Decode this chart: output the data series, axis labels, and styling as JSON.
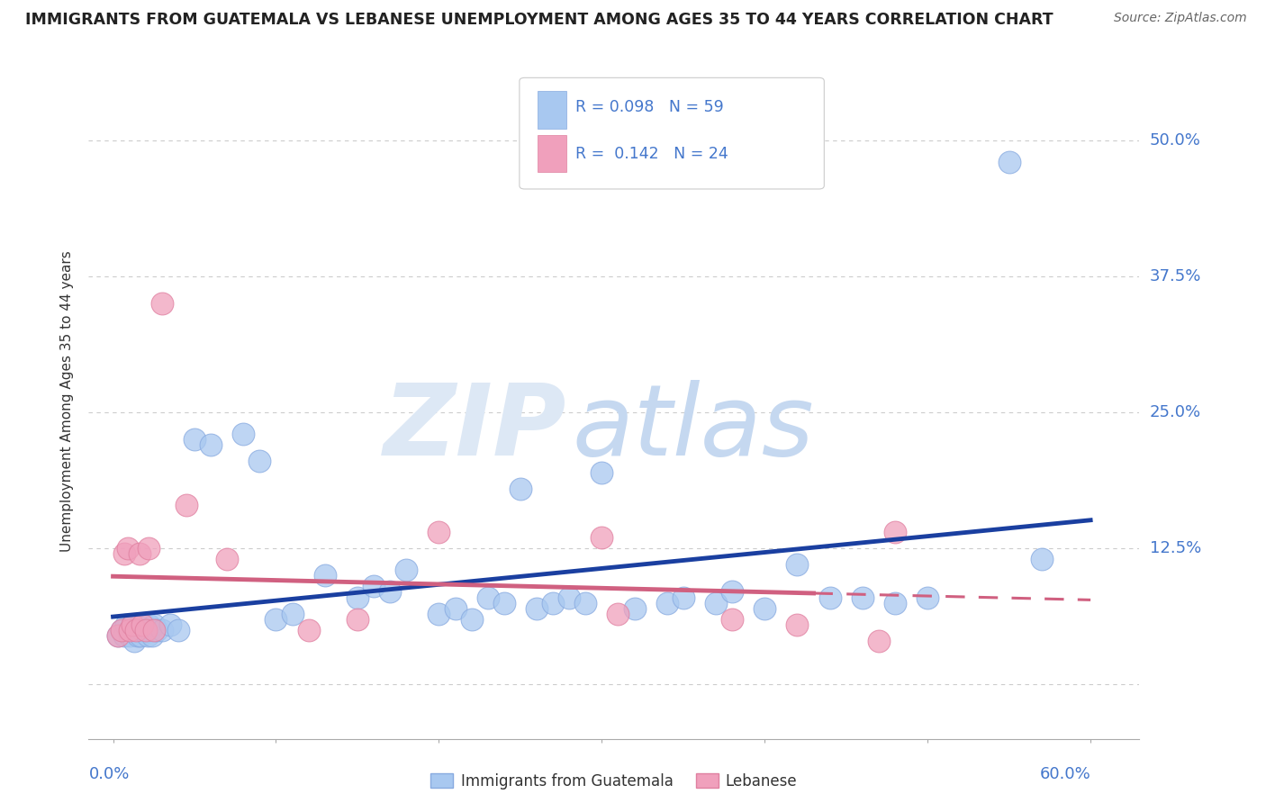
{
  "title": "IMMIGRANTS FROM GUATEMALA VS LEBANESE UNEMPLOYMENT AMONG AGES 35 TO 44 YEARS CORRELATION CHART",
  "source": "Source: ZipAtlas.com",
  "ylabel": "Unemployment Among Ages 35 to 44 years",
  "ytick_values": [
    0.0,
    12.5,
    25.0,
    37.5,
    50.0
  ],
  "ytick_labels": [
    "",
    "12.5%",
    "25.0%",
    "37.5%",
    "50.0%"
  ],
  "xlim": [
    0.0,
    60.0
  ],
  "ylim": [
    0.0,
    55.0
  ],
  "legend_label1": "Immigrants from Guatemala",
  "legend_label2": "Lebanese",
  "R1": "0.098",
  "N1": "59",
  "R2": "0.142",
  "N2": "24",
  "color_blue": "#a8c8f0",
  "color_blue_edge": "#88aae0",
  "color_blue_line": "#1a3fa0",
  "color_pink": "#f0a0bc",
  "color_pink_edge": "#e080a0",
  "color_pink_line": "#d06080",
  "blue_x": [
    0.3,
    0.5,
    0.7,
    0.8,
    1.0,
    1.1,
    1.2,
    1.3,
    1.4,
    1.5,
    1.6,
    1.7,
    1.8,
    1.9,
    2.0,
    2.1,
    2.2,
    2.3,
    2.4,
    2.5,
    2.7,
    3.0,
    3.5,
    4.0,
    5.0,
    6.0,
    8.0,
    9.0,
    10.0,
    11.0,
    13.0,
    15.0,
    16.0,
    17.0,
    18.0,
    20.0,
    21.0,
    22.0,
    23.0,
    24.0,
    25.0,
    26.0,
    27.0,
    28.0,
    29.0,
    30.0,
    32.0,
    34.0,
    35.0,
    37.0,
    38.0,
    40.0,
    42.0,
    44.0,
    46.0,
    48.0,
    50.0,
    55.0,
    57.0
  ],
  "blue_y": [
    4.5,
    5.0,
    4.5,
    5.5,
    4.5,
    5.0,
    5.5,
    4.0,
    5.0,
    4.5,
    5.5,
    4.5,
    5.0,
    5.5,
    5.0,
    4.5,
    5.5,
    5.0,
    4.5,
    5.5,
    5.0,
    5.0,
    5.5,
    5.0,
    22.5,
    22.0,
    23.0,
    20.5,
    6.0,
    6.5,
    10.0,
    8.0,
    9.0,
    8.5,
    10.5,
    6.5,
    7.0,
    6.0,
    8.0,
    7.5,
    18.0,
    7.0,
    7.5,
    8.0,
    7.5,
    19.5,
    7.0,
    7.5,
    8.0,
    7.5,
    8.5,
    7.0,
    11.0,
    8.0,
    8.0,
    7.5,
    8.0,
    48.0,
    11.5
  ],
  "pink_x": [
    0.3,
    0.5,
    0.7,
    0.9,
    1.0,
    1.2,
    1.4,
    1.6,
    1.8,
    2.0,
    2.2,
    2.5,
    3.0,
    4.5,
    7.0,
    12.0,
    15.0,
    20.0,
    30.0,
    31.0,
    38.0,
    42.0,
    47.0,
    48.0
  ],
  "pink_y": [
    4.5,
    5.0,
    12.0,
    12.5,
    5.0,
    5.5,
    5.0,
    12.0,
    5.5,
    5.0,
    12.5,
    5.0,
    35.0,
    16.5,
    11.5,
    5.0,
    6.0,
    14.0,
    13.5,
    6.5,
    6.0,
    5.5,
    4.0,
    14.0
  ],
  "watermark_zip": "ZIP",
  "watermark_atlas": "atlas"
}
